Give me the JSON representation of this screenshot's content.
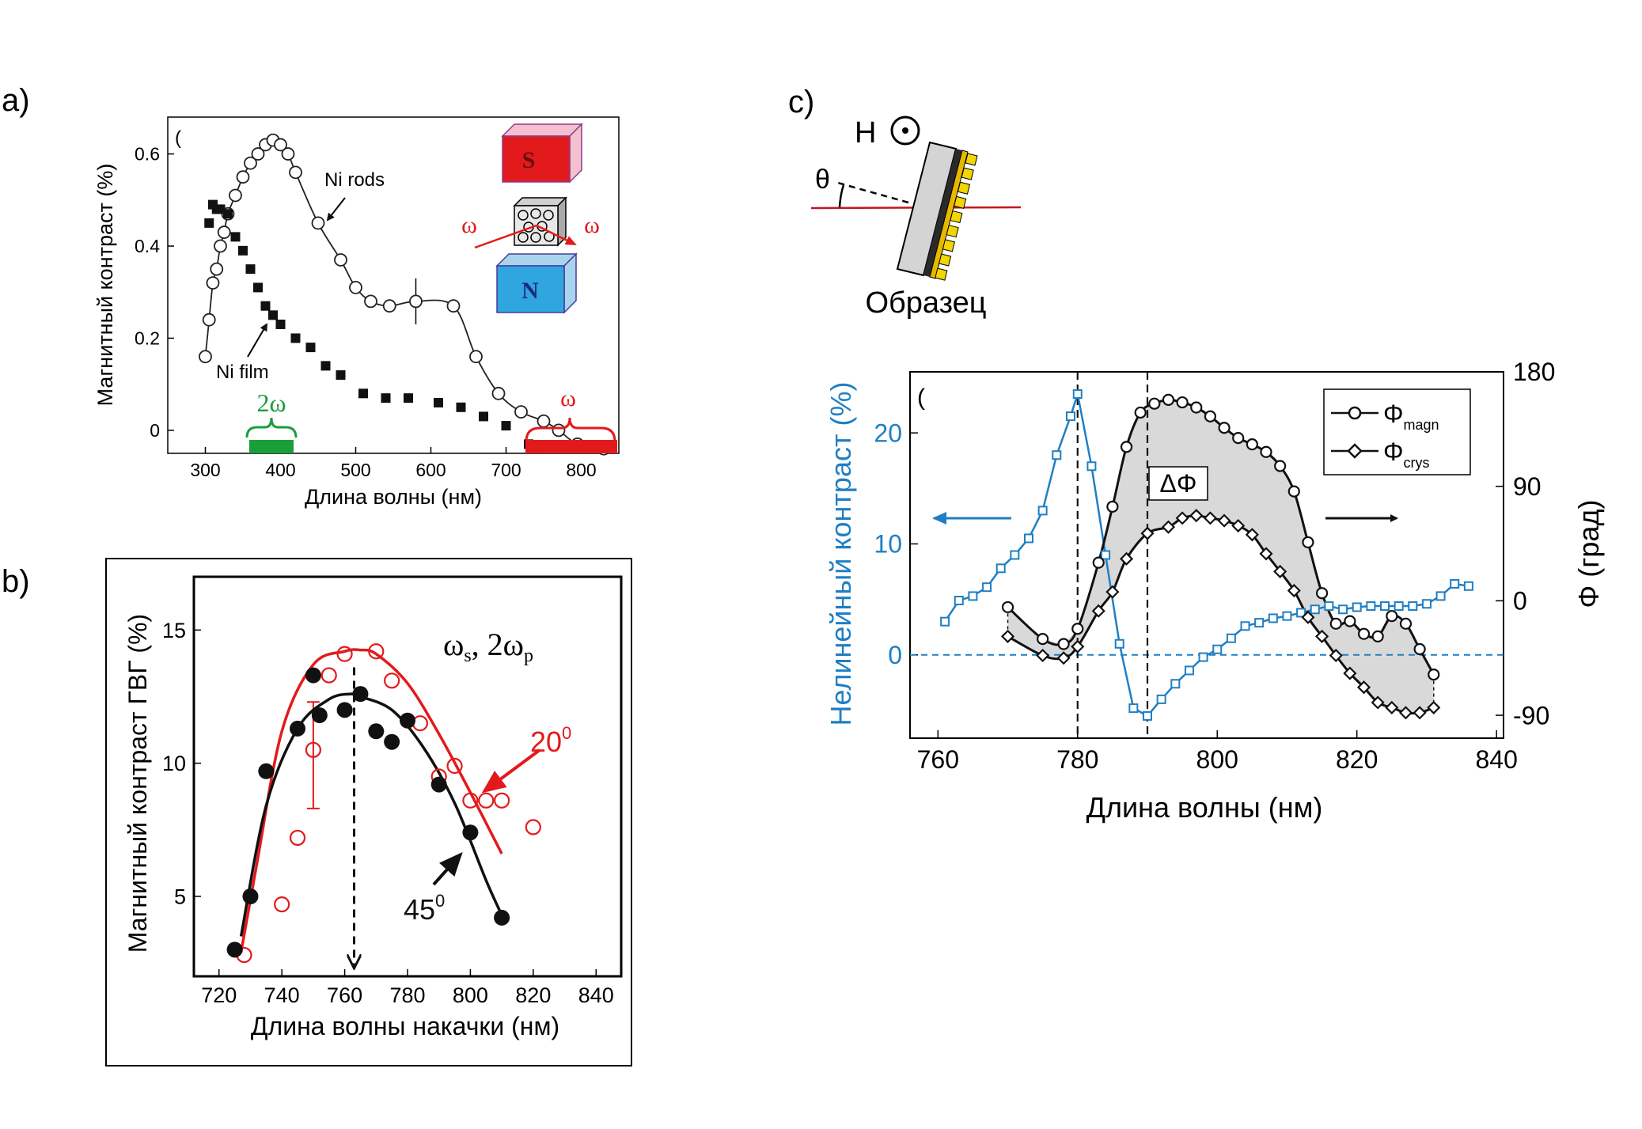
{
  "figure": {
    "labels": {
      "a": "a)",
      "b": "b)",
      "c": "c)"
    }
  },
  "chart_data": [
    {
      "type": "scatter",
      "panel": "a",
      "xlabel": "Длина волны (нм)",
      "ylabel": "Магнитный контраст (%)",
      "xlim": [
        250,
        850
      ],
      "ylim": [
        -0.05,
        0.68
      ],
      "xticks": [
        "300",
        "400",
        "500",
        "600",
        "700",
        "800"
      ],
      "yticks": [
        "0",
        "0.2",
        "0.4",
        "0.6"
      ],
      "series": [
        {
          "name": "Ni rods",
          "marker": "open-circle",
          "line": true,
          "x": [
            300,
            305,
            310,
            315,
            320,
            325,
            330,
            340,
            350,
            360,
            370,
            380,
            390,
            400,
            410,
            420,
            450,
            480,
            500,
            520,
            545,
            580,
            630,
            660,
            690,
            720,
            750,
            770,
            795,
            830
          ],
          "y": [
            0.16,
            0.24,
            0.32,
            0.35,
            0.4,
            0.43,
            0.47,
            0.51,
            0.55,
            0.58,
            0.6,
            0.62,
            0.63,
            0.62,
            0.6,
            0.56,
            0.45,
            0.37,
            0.31,
            0.28,
            0.27,
            0.28,
            0.27,
            0.16,
            0.08,
            0.04,
            0.02,
            0.0,
            -0.03,
            -0.04
          ]
        },
        {
          "name": "Ni film",
          "marker": "filled-square",
          "line": false,
          "x": [
            305,
            310,
            315,
            320,
            330,
            340,
            350,
            360,
            370,
            380,
            390,
            400,
            420,
            440,
            460,
            480,
            510,
            540,
            570,
            610,
            640,
            670,
            700,
            730,
            760
          ],
          "y": [
            0.45,
            0.49,
            0.48,
            0.48,
            0.47,
            0.42,
            0.39,
            0.35,
            0.31,
            0.27,
            0.25,
            0.23,
            0.2,
            0.18,
            0.14,
            0.12,
            0.08,
            0.07,
            0.07,
            0.06,
            0.05,
            0.03,
            0.01,
            -0.03,
            -0.04
          ]
        }
      ],
      "annotations": [
        "Ni rods",
        "Ni film",
        "2ω",
        "ω",
        "ω",
        "ω"
      ],
      "inset_labels": {
        "south": "S",
        "north": "N"
      },
      "colors": {
        "two_omega": "#1a9e3a",
        "omega": "#e31a1c"
      }
    },
    {
      "type": "scatter",
      "panel": "b",
      "xlabel": "Длина волны накачки (нм)",
      "ylabel": "Магнитный контраст ГВГ (%)",
      "xlim": [
        712,
        848
      ],
      "ylim": [
        2,
        17
      ],
      "xticks": [
        "720",
        "740",
        "760",
        "780",
        "800",
        "820",
        "840"
      ],
      "yticks": [
        "5",
        "10",
        "15"
      ],
      "title_parts": {
        "a": "ω",
        "a_sub": "s",
        "sep": ", 2ω",
        "b_sub": "p"
      },
      "series": [
        {
          "name": "20",
          "angle_label": "20",
          "sup": "0",
          "color": "#e31a1c",
          "marker": "open-circle",
          "x": [
            728,
            740,
            745,
            750,
            755,
            760,
            770,
            775,
            784,
            790,
            795,
            800,
            805,
            810,
            820
          ],
          "y": [
            2.8,
            4.7,
            7.2,
            10.5,
            13.3,
            14.1,
            14.2,
            13.1,
            11.5,
            9.5,
            9.9,
            8.6,
            8.6,
            8.6,
            7.6
          ],
          "fit": {
            "x": [
              727,
              732,
              740,
              750,
              760,
              765,
              770,
              780,
              790,
              800,
              810
            ],
            "y": [
              2.9,
              6.2,
              11.2,
              13.7,
              14.2,
              14.25,
              14.1,
              13.0,
              11.1,
              8.9,
              6.6
            ]
          }
        },
        {
          "name": "45",
          "angle_label": "45",
          "sup": "0",
          "color": "#111111",
          "marker": "filled-circle",
          "x": [
            725,
            730,
            735,
            745,
            750,
            752,
            760,
            765,
            770,
            775,
            780,
            790,
            800,
            810
          ],
          "y": [
            3.0,
            5.0,
            9.7,
            11.3,
            13.3,
            11.8,
            12.0,
            12.6,
            11.2,
            10.8,
            11.6,
            9.2,
            7.4,
            4.2
          ],
          "fit": {
            "x": [
              727,
              735,
              745,
              755,
              762,
              765,
              775,
              785,
              795,
              805,
              810
            ],
            "y": [
              3.5,
              8.4,
              11.3,
              12.4,
              12.6,
              12.5,
              12.0,
              10.6,
              8.5,
              5.6,
              4.3
            ]
          }
        }
      ],
      "vertical_marker_x": 763,
      "error_bar": {
        "x": 750,
        "low": 8.3,
        "high": 12.3
      }
    },
    {
      "type": "line",
      "panel": "c",
      "xlabel": "Длина волны (нм)",
      "ylabel_left": "Нелинейный контраст (%)",
      "ylabel_right": "Φ (град)",
      "xlim": [
        756,
        841
      ],
      "ylim_left": [
        -7.5,
        25.5
      ],
      "ylim_right": [
        -108,
        180
      ],
      "xticks": [
        "760",
        "780",
        "800",
        "820",
        "840"
      ],
      "yticks_left": [
        "0",
        "10",
        "20"
      ],
      "yticks_right": [
        "-90",
        "0",
        "90",
        "180"
      ],
      "vlines": [
        780,
        790
      ],
      "delta_label": "ΔΦ",
      "legend_position": "top-right",
      "series": [
        {
          "name": "nonlinear-contrast",
          "axis": "left",
          "color": "#1f7fc4",
          "marker": "open-square",
          "x": [
            761,
            763,
            765,
            767,
            769,
            771,
            773,
            775,
            777,
            779,
            780,
            782,
            784,
            786,
            788,
            790,
            792,
            794,
            796,
            798,
            800,
            802,
            804,
            806,
            808,
            810,
            812,
            814,
            816,
            818,
            820,
            822,
            824,
            826,
            828,
            830,
            832,
            834,
            836
          ],
          "y": [
            3.0,
            4.9,
            5.3,
            6.1,
            7.8,
            9.0,
            10.5,
            13.0,
            18.0,
            21.5,
            23.5,
            17.0,
            9.0,
            1.0,
            -4.8,
            -5.5,
            -4.0,
            -2.6,
            -1.4,
            -0.2,
            0.5,
            1.5,
            2.6,
            2.9,
            3.3,
            3.5,
            3.8,
            4.1,
            4.4,
            4.1,
            4.3,
            4.4,
            4.4,
            4.4,
            4.4,
            4.6,
            5.3,
            6.4,
            6.2
          ]
        },
        {
          "name": "Φ",
          "sub": "magn",
          "axis": "right",
          "color": "#111111",
          "marker": "open-circle",
          "x": [
            770,
            775,
            778,
            780,
            783,
            785,
            787,
            789,
            791,
            793,
            795,
            797,
            799,
            801,
            803,
            805,
            807,
            809,
            811,
            813,
            815,
            817,
            819,
            821,
            823,
            825,
            827,
            829,
            831
          ],
          "y": [
            -5,
            -30,
            -34,
            -22,
            30,
            74,
            121,
            148,
            155,
            158,
            156,
            152,
            145,
            136,
            128,
            123,
            117,
            106,
            86,
            46,
            6,
            -18,
            -16,
            -26,
            -28,
            -12,
            -18,
            -38,
            -58
          ]
        },
        {
          "name": "Φ",
          "sub": "crys",
          "axis": "right",
          "color": "#111111",
          "marker": "open-diamond",
          "x": [
            770,
            775,
            778,
            780,
            783,
            785,
            787,
            790,
            793,
            795,
            797,
            799,
            801,
            803,
            805,
            807,
            809,
            811,
            813,
            815,
            817,
            819,
            821,
            823,
            825,
            827,
            829,
            831
          ],
          "y": [
            -28,
            -43,
            -45,
            -36,
            -8,
            7,
            33,
            53,
            58,
            65,
            67,
            65,
            63,
            59,
            52,
            37,
            23,
            8,
            -13,
            -28,
            -43,
            -57,
            -68,
            -80,
            -84,
            -88,
            -88,
            -84
          ]
        }
      ],
      "schematic": {
        "field_label": "H",
        "angle_label": "θ",
        "sample_label": "Образец"
      }
    }
  ]
}
